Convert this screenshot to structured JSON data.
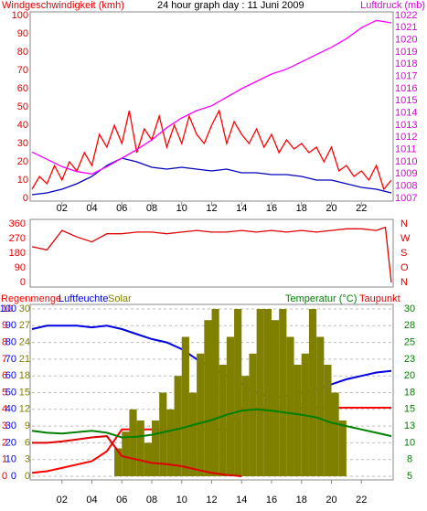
{
  "chart_data": [
    {
      "type": "line",
      "title": "24 hour graph day : 11 Juni 2009",
      "ylabel": "Windgeschwindigkeit (kmh)",
      "y2label": "Luftdruck (mb)",
      "xlim": [
        0,
        24
      ],
      "xticks": [
        {
          "value": 2,
          "label": "02"
        },
        {
          "value": 4,
          "label": "04"
        },
        {
          "value": 6,
          "label": "06"
        },
        {
          "value": 8,
          "label": "08"
        },
        {
          "value": 10,
          "label": "10"
        },
        {
          "value": 12,
          "label": "12"
        },
        {
          "value": 14,
          "label": "14"
        },
        {
          "value": 16,
          "label": "16"
        },
        {
          "value": 18,
          "label": "18"
        },
        {
          "value": 20,
          "label": "20"
        },
        {
          "value": 22,
          "label": "22"
        }
      ],
      "ylim": [
        0,
        100
      ],
      "yticks": [
        0,
        10,
        20,
        30,
        40,
        50,
        60,
        70,
        80,
        90,
        100
      ],
      "y2lim": [
        1007,
        1022
      ],
      "y2ticks": [
        1007,
        1008,
        1009,
        1010,
        1011,
        1012,
        1013,
        1014,
        1015,
        1016,
        1017,
        1018,
        1019,
        1020,
        1021,
        1022
      ],
      "series": [
        {
          "color": "#ff0000",
          "axis": "y",
          "x": [
            0,
            0.5,
            1,
            1.5,
            2,
            2.5,
            3,
            3.5,
            4,
            4.5,
            5,
            5.5,
            6,
            6.5,
            7,
            7.5,
            8,
            8.5,
            9,
            9.5,
            10,
            10.5,
            11,
            11.5,
            12,
            12.5,
            13,
            13.5,
            14,
            14.5,
            15,
            15.5,
            16,
            16.5,
            17,
            17.5,
            18,
            18.5,
            19,
            19.5,
            20,
            20.5,
            21,
            21.5,
            22,
            22.5,
            23,
            23.5,
            24
          ],
          "values": [
            5,
            12,
            8,
            18,
            10,
            20,
            15,
            25,
            18,
            35,
            28,
            40,
            30,
            48,
            25,
            38,
            32,
            45,
            28,
            40,
            30,
            45,
            35,
            30,
            40,
            48,
            30,
            42,
            35,
            30,
            38,
            28,
            35,
            25,
            32,
            27,
            30,
            25,
            28,
            20,
            28,
            15,
            18,
            12,
            15,
            10,
            18,
            5,
            10
          ]
        },
        {
          "color": "#0000c0",
          "axis": "y",
          "x": [
            0,
            1,
            2,
            3,
            4,
            5,
            6,
            7,
            8,
            9,
            10,
            11,
            12,
            13,
            14,
            15,
            16,
            17,
            18,
            19,
            20,
            21,
            22,
            23,
            24
          ],
          "values": [
            2,
            3,
            5,
            8,
            12,
            18,
            22,
            20,
            17,
            16,
            17,
            16,
            15,
            16,
            14,
            14,
            13,
            13,
            12,
            10,
            10,
            8,
            6,
            5,
            3
          ]
        },
        {
          "color": "#ff00ff",
          "axis": "y2",
          "x": [
            0,
            1,
            2,
            3,
            4,
            5,
            6,
            7,
            8,
            9,
            10,
            11,
            12,
            13,
            14,
            15,
            16,
            17,
            18,
            19,
            20,
            21,
            22,
            23,
            24
          ],
          "values": [
            1010.8,
            1010.2,
            1009.6,
            1009.2,
            1009.0,
            1009.6,
            1010.3,
            1011.0,
            1011.8,
            1012.8,
            1013.6,
            1014.2,
            1014.6,
            1015.3,
            1016.0,
            1016.6,
            1017.2,
            1017.6,
            1018.2,
            1018.8,
            1019.4,
            1020.1,
            1021.0,
            1021.6,
            1021.4
          ]
        }
      ]
    },
    {
      "type": "line",
      "xlim": [
        0,
        24
      ],
      "ylim": [
        0,
        360
      ],
      "yticks": [
        0,
        90,
        180,
        270,
        360
      ],
      "y2lim": [
        0,
        360
      ],
      "y2ticks": [
        {
          "value": 0,
          "label": "N"
        },
        {
          "value": 90,
          "label": "O"
        },
        {
          "value": 180,
          "label": "S"
        },
        {
          "value": 270,
          "label": "W"
        },
        {
          "value": 360,
          "label": "N"
        }
      ],
      "series": [
        {
          "color": "#e00000",
          "axis": "y",
          "x": [
            0,
            1,
            2,
            3,
            4,
            5,
            6,
            7,
            8,
            9,
            10,
            11,
            12,
            13,
            14,
            15,
            16,
            17,
            18,
            19,
            20,
            21,
            22,
            23,
            23.6,
            24
          ],
          "values": [
            220,
            200,
            320,
            280,
            250,
            300,
            300,
            310,
            310,
            300,
            310,
            320,
            310,
            310,
            320,
            310,
            320,
            310,
            320,
            310,
            320,
            330,
            330,
            320,
            340,
            0
          ]
        }
      ]
    },
    {
      "type": "combo",
      "grid": true,
      "xlim": [
        0,
        24
      ],
      "xticks": [
        {
          "value": 2,
          "label": "02"
        },
        {
          "value": 4,
          "label": "04"
        },
        {
          "value": 6,
          "label": "06"
        },
        {
          "value": 8,
          "label": "08"
        },
        {
          "value": 10,
          "label": "10"
        },
        {
          "value": 12,
          "label": "12"
        },
        {
          "value": 14,
          "label": "14"
        },
        {
          "value": 16,
          "label": "16"
        },
        {
          "value": 18,
          "label": "18"
        },
        {
          "value": 20,
          "label": "20"
        },
        {
          "value": 22,
          "label": "22"
        }
      ],
      "ylim": [
        0,
        100
      ],
      "yticks": [
        0,
        10,
        20,
        30,
        40,
        50,
        60,
        70,
        80,
        90,
        100
      ],
      "rainlim": [
        0,
        10
      ],
      "rainticks": [
        0,
        1,
        2,
        3,
        4,
        5,
        6,
        7,
        8,
        9,
        10
      ],
      "solarlim": [
        0,
        30
      ],
      "solarticks": [
        0,
        3,
        6,
        9,
        12,
        15,
        18,
        21,
        24,
        27,
        30
      ],
      "y2lim": [
        5,
        30
      ],
      "y2ticks": [
        5,
        {
          "value": 7.5,
          "label": "8"
        },
        10,
        {
          "value": 12.5,
          "label": "13"
        },
        15,
        {
          "value": 17.5,
          "label": "18"
        },
        20,
        {
          "value": 22.5,
          "label": "23"
        },
        25,
        {
          "value": 27.5,
          "label": "28"
        },
        30
      ],
      "series": [
        {
          "name": "Regenmenge",
          "color": "#ff0000",
          "axis": "rain",
          "type": "line",
          "x": [
            0,
            1,
            2,
            3,
            4,
            5,
            6,
            7,
            8,
            9,
            10,
            11,
            12,
            13,
            14,
            15,
            16,
            17,
            18,
            19,
            20,
            21,
            22,
            23,
            24
          ],
          "values": [
            0.2,
            0.3,
            0.5,
            0.7,
            0.9,
            1.5,
            2.8,
            2.8,
            2.8,
            2.8,
            2.8,
            2.8,
            2.8,
            2.8,
            4.1,
            4.1,
            4.1,
            4.1,
            4.1,
            4.1,
            4.1,
            4.1,
            4.1,
            4.1,
            4.1
          ]
        },
        {
          "name": "Luftfeuchte",
          "color": "#0000e0",
          "axis": "y",
          "type": "line",
          "x": [
            0,
            1,
            2,
            3,
            4,
            5,
            6,
            7,
            8,
            9,
            10,
            11,
            12,
            13,
            14,
            15,
            16,
            17,
            18,
            19,
            20,
            21,
            22,
            23,
            24
          ],
          "values": [
            88,
            90,
            90,
            90,
            89,
            90,
            88,
            85,
            82,
            80,
            76,
            70,
            65,
            60,
            55,
            50,
            47,
            48,
            50,
            52,
            55,
            58,
            60,
            62,
            63
          ]
        },
        {
          "name": "Solar",
          "color": "#808000",
          "axis": "solar",
          "type": "bar",
          "x": [
            5.5,
            6,
            6.5,
            7,
            7.5,
            8,
            8.5,
            9,
            9.5,
            10,
            10.5,
            11,
            11.5,
            12,
            12.5,
            13,
            13.5,
            14,
            14.5,
            15,
            15.5,
            16,
            16.5,
            17,
            17.5,
            18,
            18.5,
            19,
            19.5,
            20,
            20.5
          ],
          "values": [
            5,
            8,
            12,
            10,
            6,
            10,
            15,
            12,
            18,
            25,
            15,
            22,
            28,
            30,
            20,
            25,
            30,
            18,
            22,
            30,
            30,
            28,
            30,
            25,
            20,
            22,
            30,
            25,
            20,
            15,
            10
          ]
        },
        {
          "name": "Temperatur (°C)",
          "color": "#008000",
          "axis": "y2",
          "type": "line",
          "x": [
            0,
            1,
            2,
            3,
            4,
            5,
            6,
            7,
            8,
            9,
            10,
            11,
            12,
            13,
            14,
            15,
            16,
            17,
            18,
            19,
            20,
            21,
            22,
            23,
            24
          ],
          "values": [
            11.8,
            11.5,
            11.4,
            11.6,
            11.8,
            11.5,
            10.8,
            10.9,
            11.2,
            11.7,
            12.2,
            12.8,
            13.4,
            14.2,
            14.8,
            15.0,
            14.8,
            14.5,
            14.2,
            13.8,
            13.0,
            12.5,
            12.0,
            11.5,
            11.0
          ]
        },
        {
          "name": "Taupunkt",
          "color": "#e00000",
          "axis": "y2",
          "type": "line",
          "x": [
            0,
            1,
            2,
            3,
            4,
            5,
            6,
            7,
            8,
            9,
            10,
            11,
            12,
            13,
            14
          ],
          "values": [
            10,
            10,
            10.2,
            10.5,
            10.8,
            11,
            8,
            7.5,
            7,
            6.8,
            6.5,
            6,
            5.5,
            5.2,
            5
          ]
        }
      ]
    }
  ]
}
